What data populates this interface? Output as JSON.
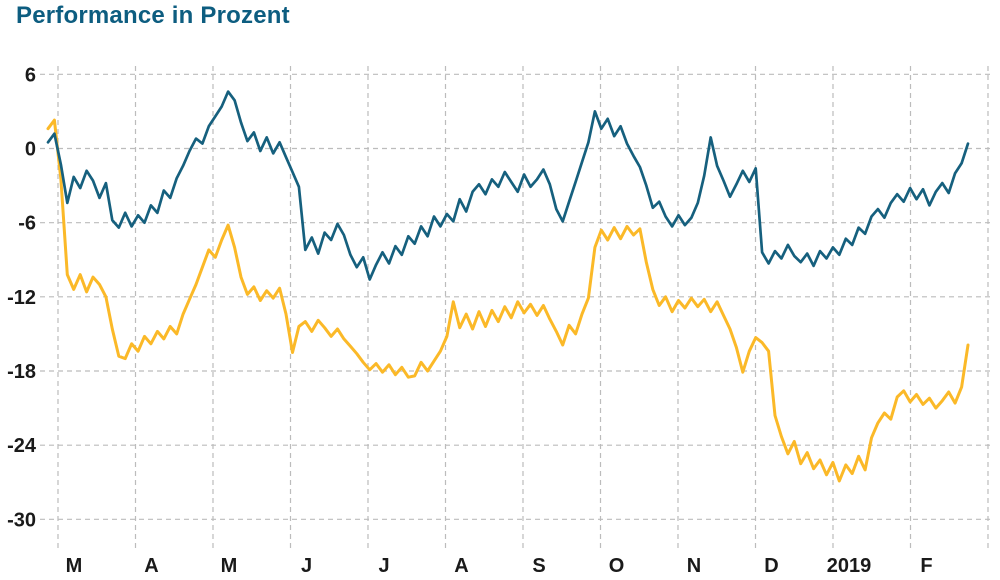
{
  "header": {
    "title": "Performance in Prozent"
  },
  "colors": {
    "title": "#0d5d80",
    "grid": "#bcbcbc",
    "axis_text": "#1a1a1a",
    "background": "#ffffff"
  },
  "chart_data": {
    "type": "line",
    "title": "Performance in Prozent",
    "xlabel": "",
    "ylabel": "",
    "ylim": [
      -30,
      6
    ],
    "grid": "dashed",
    "legend": "none",
    "y_ticks": [
      6,
      0,
      -6,
      -12,
      -18,
      -24,
      -30
    ],
    "x_tick_labels": [
      "M",
      "A",
      "M",
      "J",
      "J",
      "A",
      "S",
      "O",
      "N",
      "D",
      "2019",
      "F"
    ],
    "series": [
      {
        "name": "line-yellow",
        "color": "#fbb928",
        "values": [
          1.6,
          2.3,
          -2.5,
          -10.2,
          -11.4,
          -10.2,
          -11.6,
          -10.4,
          -11.0,
          -12.0,
          -14.6,
          -16.8,
          -17.0,
          -15.8,
          -16.4,
          -15.2,
          -15.8,
          -14.8,
          -15.4,
          -14.4,
          -15.0,
          -13.4,
          -12.2,
          -11.0,
          -9.6,
          -8.2,
          -8.8,
          -7.4,
          -6.2,
          -8.0,
          -10.4,
          -11.8,
          -11.2,
          -12.3,
          -11.5,
          -12.1,
          -11.3,
          -13.4,
          -16.5,
          -14.4,
          -14.0,
          -14.8,
          -13.9,
          -14.5,
          -15.2,
          -14.6,
          -15.4,
          -16.0,
          -16.6,
          -17.3,
          -17.9,
          -17.4,
          -18.1,
          -17.5,
          -18.3,
          -17.7,
          -18.5,
          -18.4,
          -17.3,
          -18.0,
          -17.2,
          -16.4,
          -15.2,
          -12.4,
          -14.5,
          -13.4,
          -14.6,
          -13.2,
          -14.4,
          -13.1,
          -14.0,
          -12.8,
          -13.7,
          -12.4,
          -13.3,
          -12.6,
          -13.5,
          -12.7,
          -13.8,
          -14.8,
          -15.9,
          -14.3,
          -15.0,
          -13.4,
          -12.1,
          -8.0,
          -6.6,
          -7.4,
          -6.4,
          -7.3,
          -6.3,
          -7.0,
          -6.5,
          -9.2,
          -11.4,
          -12.7,
          -12.0,
          -13.2,
          -12.3,
          -12.9,
          -12.1,
          -12.8,
          -12.2,
          -13.2,
          -12.4,
          -13.5,
          -14.6,
          -16.1,
          -18.1,
          -16.4,
          -15.3,
          -15.7,
          -16.4,
          -21.6,
          -23.3,
          -24.7,
          -23.7,
          -25.5,
          -24.6,
          -25.9,
          -25.2,
          -26.4,
          -25.4,
          -26.9,
          -25.6,
          -26.3,
          -24.9,
          -26.0,
          -23.4,
          -22.2,
          -21.4,
          -21.9,
          -20.1,
          -19.6,
          -20.5,
          -19.9,
          -20.7,
          -20.2,
          -21.0,
          -20.4,
          -19.7,
          -20.6,
          -19.3,
          -15.9
        ]
      },
      {
        "name": "line-blue",
        "color": "#16607e",
        "values": [
          0.5,
          1.2,
          -1.3,
          -4.4,
          -2.3,
          -3.2,
          -1.8,
          -2.6,
          -4.0,
          -2.8,
          -5.8,
          -6.4,
          -5.2,
          -6.3,
          -5.4,
          -6.0,
          -4.6,
          -5.2,
          -3.4,
          -4.0,
          -2.4,
          -1.4,
          -0.2,
          0.8,
          0.4,
          1.8,
          2.6,
          3.4,
          4.6,
          3.9,
          2.1,
          0.6,
          1.3,
          -0.2,
          0.9,
          -0.4,
          0.5,
          -0.7,
          -1.9,
          -3.1,
          -8.2,
          -7.2,
          -8.5,
          -6.8,
          -7.4,
          -6.1,
          -7.0,
          -8.6,
          -9.6,
          -8.8,
          -10.6,
          -9.4,
          -8.4,
          -9.3,
          -7.9,
          -8.6,
          -7.1,
          -7.7,
          -6.3,
          -7.1,
          -5.5,
          -6.3,
          -5.3,
          -5.9,
          -4.1,
          -5.1,
          -3.5,
          -2.9,
          -3.7,
          -2.5,
          -3.1,
          -1.9,
          -2.7,
          -3.5,
          -2.1,
          -3.1,
          -2.5,
          -1.7,
          -2.9,
          -4.9,
          -5.9,
          -4.3,
          -2.7,
          -1.1,
          0.5,
          3.0,
          1.6,
          2.4,
          1.0,
          1.8,
          0.4,
          -0.6,
          -1.5,
          -3.0,
          -4.8,
          -4.3,
          -5.5,
          -6.3,
          -5.4,
          -6.2,
          -5.6,
          -4.4,
          -2.2,
          0.9,
          -1.4,
          -2.6,
          -3.9,
          -2.9,
          -1.8,
          -2.7,
          -1.6,
          -8.4,
          -9.3,
          -8.3,
          -8.9,
          -7.8,
          -8.7,
          -9.2,
          -8.5,
          -9.5,
          -8.3,
          -8.9,
          -8.0,
          -8.6,
          -7.3,
          -7.8,
          -6.4,
          -6.9,
          -5.5,
          -4.9,
          -5.6,
          -4.4,
          -3.7,
          -4.3,
          -3.2,
          -4.1,
          -3.3,
          -4.6,
          -3.5,
          -2.8,
          -3.6,
          -2.0,
          -1.2,
          0.4
        ]
      }
    ]
  }
}
